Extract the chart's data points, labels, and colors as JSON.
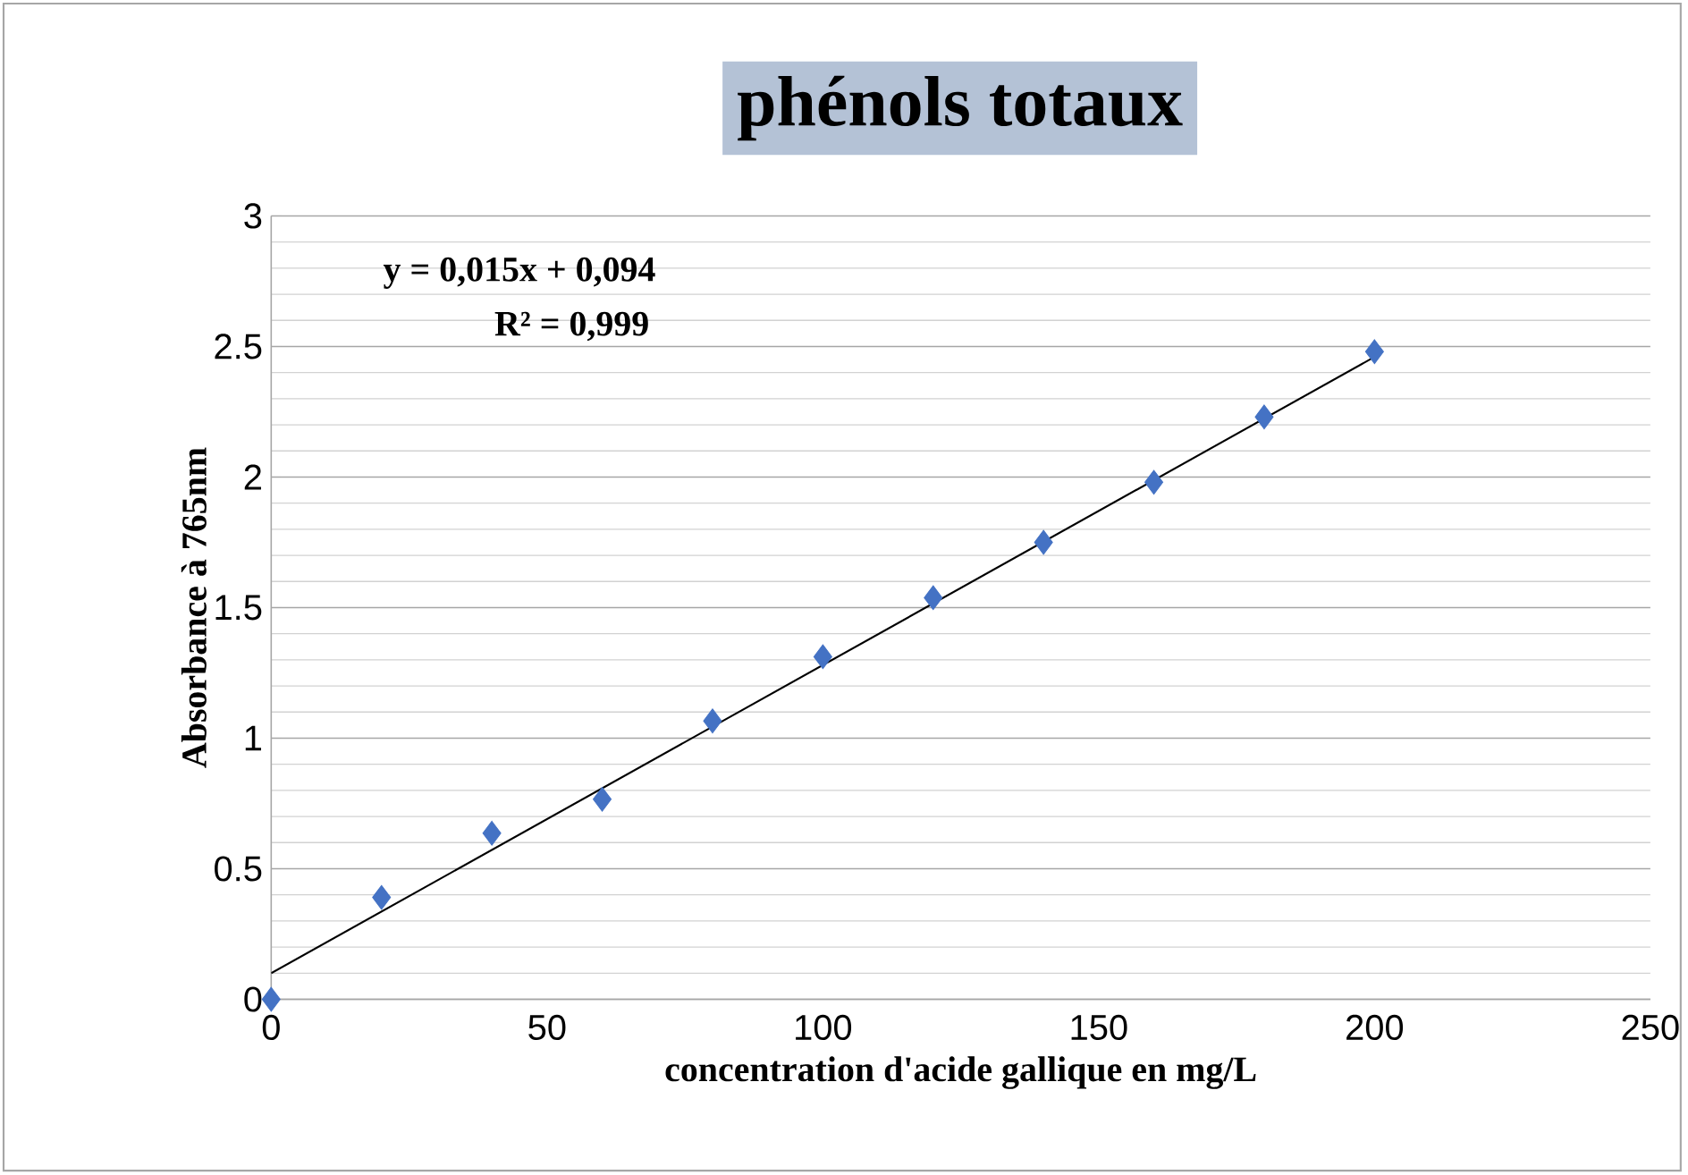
{
  "chart_data": {
    "type": "scatter",
    "title": "phénols totaux",
    "xlabel": "concentration d'acide gallique en mg/L",
    "ylabel": "Absorbance à 765nm",
    "annotations": [
      "y = 0,015x + 0,094",
      "R² = 0,999"
    ],
    "xlim": [
      0,
      250
    ],
    "xticks": [
      0,
      50,
      100,
      150,
      200,
      250
    ],
    "ylim": [
      0,
      3
    ],
    "yticks": [
      0,
      0.5,
      1,
      1.5,
      2,
      2.5,
      3
    ],
    "grid": "y",
    "series": [
      {
        "color": "#4472c4",
        "marker": "diamond",
        "x": [
          0,
          20,
          40,
          60,
          80,
          100,
          120,
          140,
          160,
          180,
          200
        ],
        "values": [
          0,
          0.39,
          0.636,
          0.766,
          1.066,
          1.312,
          1.538,
          1.75,
          1.98,
          2.23,
          2.48
        ]
      },
      {
        "type": "line",
        "color": "#000000",
        "marker": "none",
        "x": [
          0,
          200
        ],
        "values": [
          0.1,
          2.46
        ]
      }
    ]
  }
}
